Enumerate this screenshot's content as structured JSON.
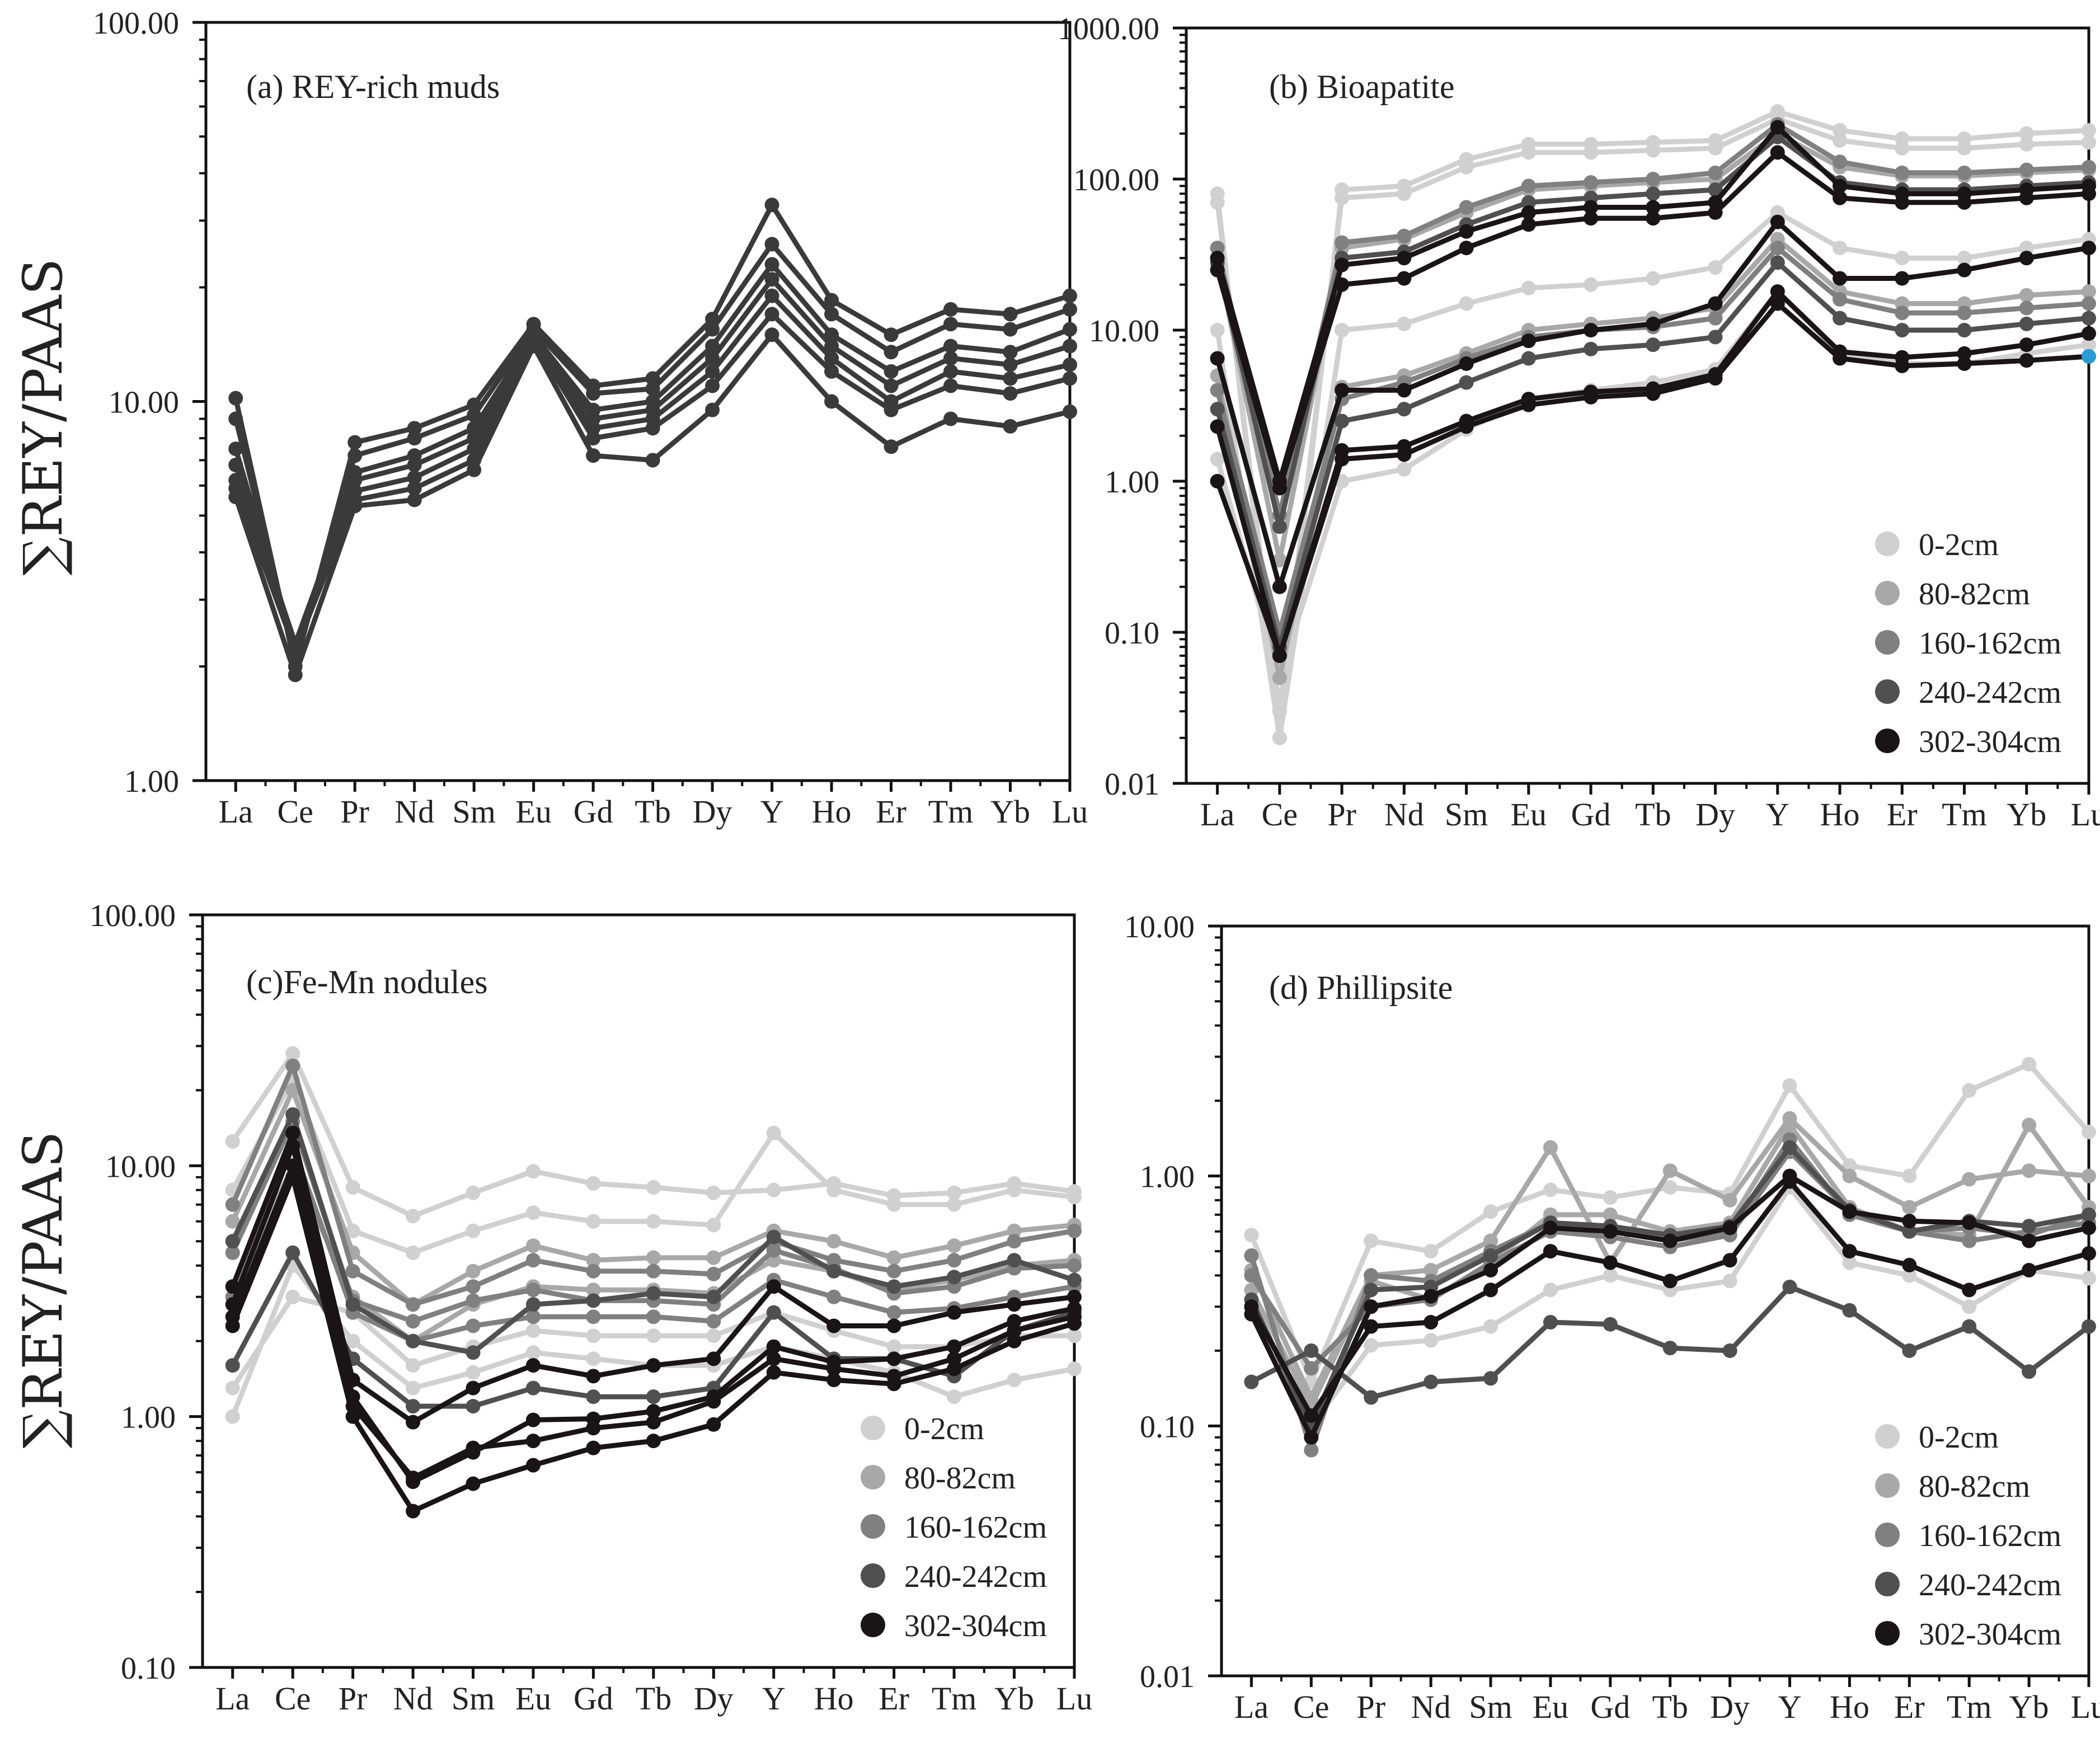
{
  "y_axis_title": "∑REY/PAAS",
  "chart_data": [
    {
      "id": "a",
      "type": "line",
      "title": "(a) REY-rich muds",
      "categories": [
        "La",
        "Ce",
        "Pr",
        "Nd",
        "Sm",
        "Eu",
        "Gd",
        "Tb",
        "Dy",
        "Y",
        "Ho",
        "Er",
        "Tm",
        "Yb",
        "Lu"
      ],
      "ylabel": "∑REY/PAAS",
      "yscale": "log",
      "ylim": [
        1,
        100
      ],
      "yticks": [
        "1.00",
        "10.00",
        "100.00"
      ],
      "grid": false,
      "legend": null,
      "series": [
        {
          "values": [
            10.2,
            2.0,
            7.8,
            8.5,
            9.8,
            16,
            11,
            11.5,
            16.5,
            33,
            18.5,
            15,
            17.5,
            17,
            19
          ],
          "color": "#3a3a3a"
        },
        {
          "values": [
            9.0,
            2.1,
            7.2,
            8.0,
            9.2,
            15.5,
            10.5,
            10.8,
            15.5,
            26,
            17,
            13.5,
            16,
            15.5,
            17.5
          ],
          "color": "#3a3a3a"
        },
        {
          "values": [
            7.5,
            2.2,
            6.5,
            7.2,
            8.5,
            15,
            9.5,
            10,
            14,
            23,
            15,
            12,
            14,
            13.5,
            15.5
          ],
          "color": "#3a3a3a"
        },
        {
          "values": [
            6.8,
            2.3,
            6.2,
            6.8,
            8.0,
            15,
            9,
            9.5,
            13,
            21,
            14,
            11,
            13,
            12.5,
            14
          ],
          "color": "#3a3a3a"
        },
        {
          "values": [
            6.2,
            2.3,
            5.8,
            6.3,
            7.5,
            14.5,
            8.5,
            9,
            12,
            19,
            13,
            10,
            12,
            11.5,
            12.5
          ],
          "color": "#3a3a3a"
        },
        {
          "values": [
            5.9,
            2.2,
            5.5,
            5.9,
            7.0,
            14.5,
            8,
            8.5,
            11,
            17,
            12,
            9.5,
            11,
            10.5,
            11.5
          ],
          "color": "#3a3a3a"
        },
        {
          "values": [
            5.6,
            1.9,
            5.3,
            5.5,
            6.6,
            14,
            7.2,
            7,
            9.5,
            15,
            10,
            7.6,
            9,
            8.6,
            9.4
          ],
          "color": "#3a3a3a"
        }
      ]
    },
    {
      "id": "b",
      "type": "line",
      "title": "(b) Bioapatite",
      "categories": [
        "La",
        "Ce",
        "Pr",
        "Nd",
        "Sm",
        "Eu",
        "Gd",
        "Tb",
        "Dy",
        "Y",
        "Ho",
        "Er",
        "Tm",
        "Yb",
        "Lu"
      ],
      "yscale": "log",
      "ylim": [
        0.01,
        1000
      ],
      "yticks": [
        "0.01",
        "0.10",
        "1.00",
        "10.00",
        "100.00",
        "1000.00"
      ],
      "grid": false,
      "legend": {
        "position": "bottom-right",
        "entries": [
          "0-2cm",
          "80-82cm",
          "160-162cm",
          "240-242cm",
          "302-304cm"
        ],
        "colors": [
          "#d0d0d0",
          "#a8a8a8",
          "#808080",
          "#505050",
          "#1a1414"
        ]
      },
      "series": [
        {
          "values": [
            80,
            0.02,
            85,
            90,
            135,
            170,
            170,
            175,
            180,
            280,
            210,
            185,
            185,
            200,
            210
          ],
          "color": "#d0d0d0"
        },
        {
          "values": [
            70,
            0.03,
            75,
            80,
            120,
            150,
            150,
            155,
            160,
            250,
            180,
            160,
            160,
            170,
            175
          ],
          "color": "#d0d0d0"
        },
        {
          "values": [
            10,
            0.02,
            10,
            11,
            15,
            19,
            20,
            22,
            26,
            60,
            35,
            30,
            30,
            35,
            40
          ],
          "color": "#d0d0d0"
        },
        {
          "values": [
            1.4,
            0.05,
            1.0,
            1.2,
            2.2,
            3.5,
            4.0,
            4.5,
            5.5,
            18,
            7,
            6,
            6,
            7,
            8
          ],
          "color": "#d0d0d0"
        },
        {
          "values": [
            30,
            0.3,
            35,
            40,
            60,
            85,
            90,
            95,
            100,
            200,
            120,
            105,
            105,
            110,
            115
          ],
          "color": "#a8a8a8"
        },
        {
          "values": [
            5,
            0.05,
            4.2,
            5,
            7,
            10,
            11,
            12,
            14,
            40,
            18,
            15,
            15,
            17,
            18
          ],
          "color": "#a8a8a8"
        },
        {
          "values": [
            35,
            0.6,
            38,
            42,
            65,
            90,
            95,
            100,
            110,
            230,
            130,
            110,
            110,
            115,
            120
          ],
          "color": "#808080"
        },
        {
          "values": [
            4,
            0.1,
            3.5,
            4.5,
            6.5,
            9,
            10,
            10.5,
            12,
            35,
            16,
            13,
            13,
            14,
            15
          ],
          "color": "#808080"
        },
        {
          "values": [
            28,
            0.5,
            30,
            33,
            50,
            70,
            75,
            80,
            85,
            190,
            95,
            85,
            85,
            90,
            95
          ],
          "color": "#505050"
        },
        {
          "values": [
            3,
            0.08,
            2.5,
            3,
            4.5,
            6.5,
            7.5,
            8,
            9,
            28,
            12,
            10,
            10,
            11,
            12
          ],
          "color": "#505050"
        },
        {
          "values": [
            30,
            1.0,
            27,
            30,
            45,
            60,
            65,
            65,
            70,
            220,
            90,
            80,
            80,
            85,
            90
          ],
          "color": "#1a1414"
        },
        {
          "values": [
            25,
            0.9,
            20,
            22,
            35,
            50,
            55,
            55,
            60,
            150,
            75,
            70,
            70,
            75,
            80
          ],
          "color": "#1a1414"
        },
        {
          "values": [
            6.5,
            0.2,
            4,
            4,
            6,
            8.5,
            10,
            11,
            15,
            52,
            22,
            22,
            25,
            30,
            35
          ],
          "color": "#1a1414"
        },
        {
          "values": [
            2.3,
            0.07,
            1.6,
            1.7,
            2.5,
            3.5,
            3.9,
            4.1,
            5.1,
            18,
            7.2,
            6.6,
            7,
            8,
            9.5
          ],
          "color": "#1a1414"
        },
        {
          "values": [
            1.0,
            0.07,
            1.4,
            1.5,
            2.3,
            3.2,
            3.6,
            3.8,
            4.8,
            15,
            6.5,
            5.8,
            6,
            6.3,
            6.7
          ],
          "color": "#1a1414"
        }
      ],
      "highlight_point": {
        "category": "Lu",
        "value": 6.7,
        "color": "#2a9ad4"
      }
    },
    {
      "id": "c",
      "type": "line",
      "title": "(c)Fe-Mn nodules",
      "categories": [
        "La",
        "Ce",
        "Pr",
        "Nd",
        "Sm",
        "Eu",
        "Gd",
        "Tb",
        "Dy",
        "Y",
        "Ho",
        "Er",
        "Tm",
        "Yb",
        "Lu"
      ],
      "ylabel": "∑REY/PAAS",
      "yscale": "log",
      "ylim": [
        0.1,
        100
      ],
      "yticks": [
        "0.10",
        "1.00",
        "10.00",
        "100.00"
      ],
      "grid": false,
      "legend": {
        "position": "bottom-right",
        "entries": [
          "0-2cm",
          "80-82cm",
          "160-162cm",
          "240-242cm",
          "302-304cm"
        ],
        "colors": [
          "#d0d0d0",
          "#a8a8a8",
          "#808080",
          "#505050",
          "#1a1414"
        ]
      },
      "series": [
        {
          "values": [
            12.5,
            28,
            8.2,
            6.3,
            7.8,
            9.5,
            8.5,
            8.2,
            7.8,
            8,
            8.5,
            7.6,
            7.8,
            8.5,
            7.9
          ],
          "color": "#d0d0d0"
        },
        {
          "values": [
            8,
            22,
            5.5,
            4.5,
            5.5,
            6.5,
            6,
            6,
            5.8,
            13.5,
            8,
            7,
            7,
            8,
            7.5
          ],
          "color": "#d0d0d0"
        },
        {
          "values": [
            1.3,
            3,
            2.6,
            1.6,
            1.9,
            2.2,
            2.1,
            2.1,
            2.1,
            2.6,
            2.2,
            1.9,
            1.9,
            2.1,
            2.1
          ],
          "color": "#d0d0d0"
        },
        {
          "values": [
            1.0,
            4,
            2,
            1.3,
            1.5,
            1.8,
            1.7,
            1.6,
            1.6,
            1.9,
            1.7,
            1.5,
            1.2,
            1.4,
            1.55
          ],
          "color": "#d0d0d0"
        },
        {
          "values": [
            6,
            20,
            4.5,
            2.8,
            3.8,
            4.8,
            4.2,
            4.3,
            4.3,
            5.5,
            5,
            4.3,
            4.8,
            5.5,
            5.8
          ],
          "color": "#a8a8a8"
        },
        {
          "values": [
            3,
            10,
            3,
            2,
            2.8,
            3.3,
            3.2,
            3.2,
            3.1,
            4.2,
            3.8,
            3.2,
            3.5,
            4,
            4.2
          ],
          "color": "#a8a8a8"
        },
        {
          "values": [
            7,
            25,
            3.8,
            2.8,
            3.3,
            4.2,
            3.8,
            3.8,
            3.7,
            5,
            4.2,
            3.8,
            4.2,
            5,
            5.5
          ],
          "color": "#808080"
        },
        {
          "values": [
            4.5,
            15,
            2.9,
            2.4,
            2.9,
            3.2,
            2.9,
            2.9,
            2.8,
            4.6,
            3.9,
            3.1,
            3.3,
            3.9,
            4
          ],
          "color": "#808080"
        },
        {
          "values": [
            3,
            12,
            2.6,
            2.0,
            2.3,
            2.5,
            2.5,
            2.5,
            2.4,
            3.5,
            3,
            2.6,
            2.7,
            3,
            3.3
          ],
          "color": "#808080"
        },
        {
          "values": [
            5,
            16,
            2.8,
            2.0,
            1.8,
            2.8,
            2.9,
            3.1,
            3.0,
            5.2,
            3.8,
            3.3,
            3.6,
            4.2,
            3.5
          ],
          "color": "#505050"
        },
        {
          "values": [
            1.6,
            4.5,
            1.7,
            1.1,
            1.1,
            1.3,
            1.2,
            1.2,
            1.3,
            2.6,
            1.7,
            1.7,
            1.45,
            2.2,
            2.6
          ],
          "color": "#505050"
        },
        {
          "values": [
            3.3,
            13.5,
            1.4,
            0.95,
            1.3,
            1.6,
            1.45,
            1.6,
            1.7,
            3.3,
            2.3,
            2.3,
            2.6,
            2.8,
            3
          ],
          "color": "#1a1414"
        },
        {
          "values": [
            2.8,
            12,
            1.2,
            0.55,
            0.72,
            0.97,
            0.98,
            1.05,
            1.2,
            1.9,
            1.65,
            1.7,
            1.9,
            2.4,
            2.7
          ],
          "color": "#1a1414"
        },
        {
          "values": [
            2.5,
            10,
            1.1,
            0.57,
            0.75,
            0.8,
            0.9,
            0.95,
            1.15,
            1.7,
            1.55,
            1.45,
            1.7,
            2.2,
            2.5
          ],
          "color": "#1a1414"
        },
        {
          "values": [
            2.3,
            9,
            1.0,
            0.42,
            0.54,
            0.64,
            0.75,
            0.8,
            0.93,
            1.5,
            1.4,
            1.35,
            1.55,
            2.0,
            2.35
          ],
          "color": "#1a1414"
        }
      ]
    },
    {
      "id": "d",
      "type": "line",
      "title": "(d) Phillipsite",
      "categories": [
        "La",
        "Ce",
        "Pr",
        "Nd",
        "Sm",
        "Eu",
        "Gd",
        "Tb",
        "Dy",
        "Y",
        "Ho",
        "Er",
        "Tm",
        "Yb",
        "Lu"
      ],
      "yscale": "log",
      "ylim": [
        0.01,
        10
      ],
      "yticks": [
        "0.01",
        "0.10",
        "1.00",
        "10.00"
      ],
      "grid": false,
      "legend": {
        "position": "bottom-right",
        "entries": [
          "0-2cm",
          "80-82cm",
          "160-162cm",
          "240-242cm",
          "302-304cm"
        ],
        "colors": [
          "#d0d0d0",
          "#a8a8a8",
          "#808080",
          "#505050",
          "#1a1414"
        ]
      },
      "series": [
        {
          "values": [
            0.58,
            0.15,
            0.55,
            0.5,
            0.72,
            0.88,
            0.82,
            0.9,
            0.85,
            2.3,
            1.1,
            1.0,
            2.2,
            2.8,
            1.5
          ],
          "color": "#d0d0d0"
        },
        {
          "values": [
            0.3,
            0.1,
            0.21,
            0.22,
            0.25,
            0.35,
            0.4,
            0.35,
            0.38,
            0.9,
            0.45,
            0.4,
            0.3,
            0.42,
            0.39
          ],
          "color": "#d0d0d0"
        },
        {
          "values": [
            0.42,
            0.13,
            0.4,
            0.42,
            0.55,
            1.3,
            0.45,
            1.05,
            0.8,
            1.7,
            1.0,
            0.75,
            0.97,
            1.05,
            1.0
          ],
          "color": "#a8a8a8"
        },
        {
          "values": [
            0.35,
            0.12,
            0.38,
            0.32,
            0.45,
            0.7,
            0.7,
            0.6,
            0.65,
            1.6,
            0.75,
            0.6,
            0.58,
            1.6,
            0.75
          ],
          "color": "#a8a8a8"
        },
        {
          "values": [
            0.48,
            0.08,
            0.4,
            0.38,
            0.5,
            0.65,
            0.62,
            0.55,
            0.6,
            1.4,
            0.7,
            0.6,
            0.55,
            0.6,
            0.65
          ],
          "color": "#808080"
        },
        {
          "values": [
            0.4,
            0.17,
            0.3,
            0.32,
            0.45,
            0.6,
            0.57,
            0.52,
            0.58,
            1.25,
            0.72,
            0.6,
            0.62,
            0.58,
            0.7
          ],
          "color": "#808080"
        },
        {
          "values": [
            0.15,
            0.2,
            0.13,
            0.15,
            0.155,
            0.26,
            0.255,
            0.205,
            0.2,
            0.36,
            0.29,
            0.2,
            0.25,
            0.165,
            0.25
          ],
          "color": "#505050"
        },
        {
          "values": [
            0.32,
            0.1,
            0.35,
            0.36,
            0.48,
            0.65,
            0.63,
            0.58,
            0.63,
            1.3,
            0.73,
            0.6,
            0.66,
            0.63,
            0.7
          ],
          "color": "#505050"
        },
        {
          "values": [
            0.3,
            0.11,
            0.25,
            0.26,
            0.35,
            0.5,
            0.45,
            0.38,
            0.46,
            0.95,
            0.5,
            0.44,
            0.35,
            0.42,
            0.49
          ],
          "color": "#1a1414"
        },
        {
          "values": [
            0.28,
            0.09,
            0.3,
            0.33,
            0.42,
            0.62,
            0.6,
            0.55,
            0.62,
            1.0,
            0.72,
            0.66,
            0.65,
            0.55,
            0.62
          ],
          "color": "#1a1414"
        }
      ]
    }
  ]
}
